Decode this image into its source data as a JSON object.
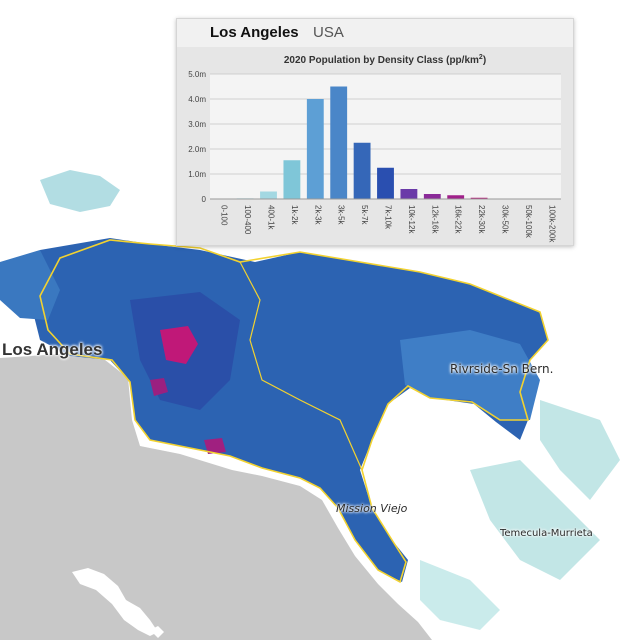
{
  "map": {
    "labels": {
      "metro_main": "Los Angeles",
      "riverside": "Rivrside-Sn Bern.",
      "mission_viejo": "Mission Viejo",
      "temecula": "Temecula-Murrieta"
    },
    "colors": {
      "ocean": "#c8c8c8",
      "land": "#ffffff",
      "boundary": "#f2d230",
      "density_low": "#a8dcdc",
      "density_mid": "#3a78c0",
      "density_high": "#1f4fa0",
      "density_peak": "#c01878"
    }
  },
  "panel": {
    "city": "Los Angeles",
    "country": "USA"
  },
  "chart_data": {
    "type": "bar",
    "title": "2020 Population by Density Class (pp/km²)",
    "title_main": "2020 Population by Density Class (pp/km",
    "title_sup": "2",
    "title_end": ")",
    "categories": [
      "0-100",
      "100-400",
      "400-1k",
      "1k-2k",
      "2k-3k",
      "3k-5k",
      "5k-7k",
      "7k-10k",
      "10k-12k",
      "12k-16k",
      "16k-22k",
      "22k-30k",
      "30k-50k",
      "50k-100k",
      "100k-200k"
    ],
    "values": [
      0,
      0.03,
      0.3,
      1.55,
      4.0,
      4.5,
      2.25,
      1.25,
      0.4,
      0.2,
      0.15,
      0.05,
      0,
      0,
      0
    ],
    "colors": [
      "#cfe9ee",
      "#b7e2e8",
      "#a3d8e2",
      "#7fc6d8",
      "#5d9fd5",
      "#4a86c8",
      "#3567b8",
      "#2a4fb0",
      "#6a3aa8",
      "#8a2a98",
      "#a0208a",
      "#b51878",
      "#c81468",
      "#d41060",
      "#e00a58"
    ],
    "y_ticks": [
      "0",
      "1.0m",
      "2.0m",
      "3.0m",
      "4.0m",
      "5.0m"
    ],
    "ylim": [
      0,
      5
    ],
    "unit": "million people",
    "grid": true,
    "legend": "none"
  }
}
